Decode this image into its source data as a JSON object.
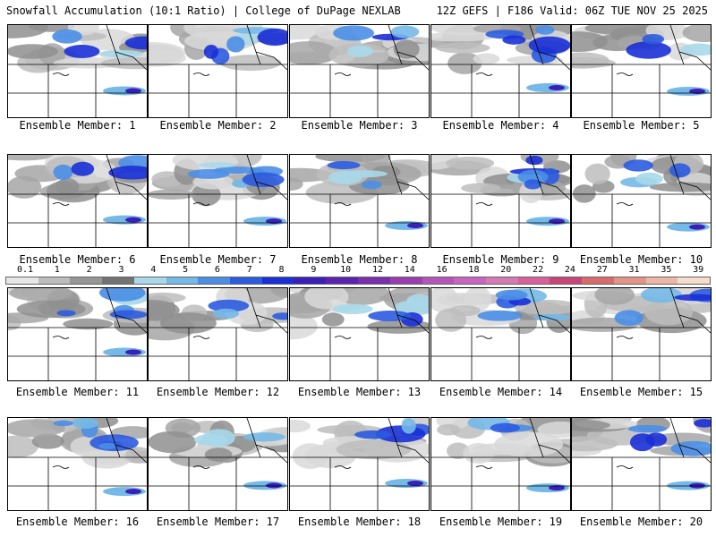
{
  "header": {
    "title_left": "Snowfall Accumulation (10:1 Ratio) | College of DuPage NEXLAB",
    "title_right": "12Z GEFS | F186 Valid: 06Z TUE NOV 25 2025"
  },
  "colorbar": {
    "labels": [
      "0.1",
      "1",
      "2",
      "3",
      "4",
      "5",
      "6",
      "7",
      "8",
      "9",
      "10",
      "12",
      "14",
      "16",
      "18",
      "20",
      "22",
      "24",
      "27",
      "31",
      "35",
      "39"
    ],
    "colors": [
      "#e6e6e6",
      "#bdbdbd",
      "#969696",
      "#737373",
      "#a8d8ea",
      "#74b9e8",
      "#4a8ee6",
      "#2c5be0",
      "#1a2fd6",
      "#3b1fb8",
      "#5a24b0",
      "#7a2fae",
      "#9b3cb0",
      "#b455b8",
      "#c865c0",
      "#d47ab5",
      "#d9609c",
      "#c94478",
      "#d86b6b",
      "#e39486",
      "#ecb8a6",
      "#f5dccc"
    ]
  },
  "members": [
    {
      "label": "Ensemble Member: 1"
    },
    {
      "label": "Ensemble Member: 2"
    },
    {
      "label": "Ensemble Member: 3"
    },
    {
      "label": "Ensemble Member: 4"
    },
    {
      "label": "Ensemble Member: 5"
    },
    {
      "label": "Ensemble Member: 6"
    },
    {
      "label": "Ensemble Member: 7"
    },
    {
      "label": "Ensemble Member: 8"
    },
    {
      "label": "Ensemble Member: 9"
    },
    {
      "label": "Ensemble Member: 10"
    },
    {
      "label": "Ensemble Member: 11"
    },
    {
      "label": "Ensemble Member: 12"
    },
    {
      "label": "Ensemble Member: 13"
    },
    {
      "label": "Ensemble Member: 14"
    },
    {
      "label": "Ensemble Member: 15"
    },
    {
      "label": "Ensemble Member: 16"
    },
    {
      "label": "Ensemble Member: 17"
    },
    {
      "label": "Ensemble Member: 18"
    },
    {
      "label": "Ensemble Member: 19"
    },
    {
      "label": "Ensemble Member: 20"
    }
  ]
}
